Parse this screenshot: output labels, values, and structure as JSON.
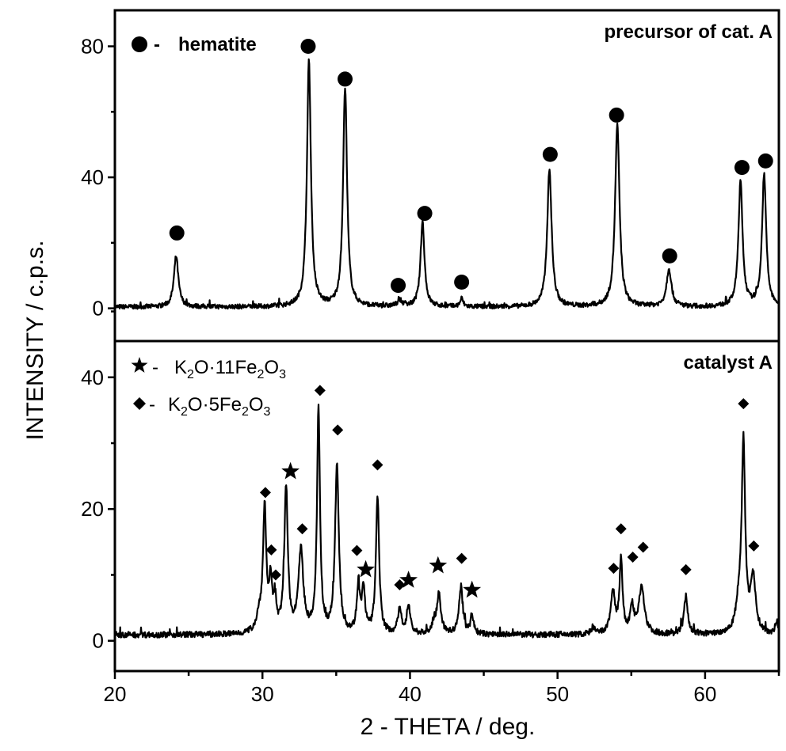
{
  "chart_data": [
    {
      "type": "line",
      "panel": "top",
      "label": "precursor of cat. A",
      "xlabel": "2 - THETA  / deg.",
      "ylabel": "INTENSITY  / c.p.s.",
      "xlim": [
        20,
        65
      ],
      "ylim": [
        -10,
        91
      ],
      "yticks": [
        0,
        40,
        80
      ],
      "baseline": 0.4,
      "peaks": [
        {
          "x": 24.15,
          "y": 15.5,
          "w": 0.18
        },
        {
          "x": 33.15,
          "y": 75,
          "w": 0.16
        },
        {
          "x": 35.6,
          "y": 67,
          "w": 0.16
        },
        {
          "x": 39.3,
          "y": 1.8,
          "w": 0.2
        },
        {
          "x": 40.85,
          "y": 26,
          "w": 0.16
        },
        {
          "x": 43.5,
          "y": 2.5,
          "w": 0.12
        },
        {
          "x": 49.45,
          "y": 42,
          "w": 0.18
        },
        {
          "x": 54.05,
          "y": 55.5,
          "w": 0.18
        },
        {
          "x": 57.55,
          "y": 11.5,
          "w": 0.2
        },
        {
          "x": 62.4,
          "y": 38,
          "w": 0.17
        },
        {
          "x": 64.0,
          "y": 40,
          "w": 0.17
        }
      ],
      "legend": [
        {
          "marker": "circle",
          "text": "hematite"
        }
      ],
      "markers": [
        {
          "type": "circle",
          "x": 24.2,
          "y": 23
        },
        {
          "type": "circle",
          "x": 33.1,
          "y": 80
        },
        {
          "type": "circle",
          "x": 35.6,
          "y": 70
        },
        {
          "type": "circle",
          "x": 39.2,
          "y": 7
        },
        {
          "type": "circle",
          "x": 41.0,
          "y": 29
        },
        {
          "type": "circle",
          "x": 43.5,
          "y": 8
        },
        {
          "type": "circle",
          "x": 49.5,
          "y": 47
        },
        {
          "type": "circle",
          "x": 54.0,
          "y": 59
        },
        {
          "type": "circle",
          "x": 57.6,
          "y": 16
        },
        {
          "type": "circle",
          "x": 62.5,
          "y": 43
        },
        {
          "type": "circle",
          "x": 64.1,
          "y": 45
        }
      ]
    },
    {
      "type": "line",
      "panel": "bottom",
      "label": "catalyst A",
      "xlim": [
        20,
        65
      ],
      "ylim": [
        -4.6,
        45.5
      ],
      "yticks": [
        0,
        20,
        40
      ],
      "xticks": [
        20,
        30,
        40,
        50,
        60
      ],
      "baseline": 0.9,
      "peaks": [
        {
          "x": 29.8,
          "y": 2.5,
          "w": 0.25
        },
        {
          "x": 30.15,
          "y": 18.5,
          "w": 0.13
        },
        {
          "x": 30.55,
          "y": 7,
          "w": 0.12
        },
        {
          "x": 30.85,
          "y": 4.5,
          "w": 0.12
        },
        {
          "x": 31.6,
          "y": 22,
          "w": 0.14
        },
        {
          "x": 32.6,
          "y": 12.5,
          "w": 0.2
        },
        {
          "x": 33.8,
          "y": 34,
          "w": 0.12
        },
        {
          "x": 35.05,
          "y": 25.8,
          "w": 0.15
        },
        {
          "x": 36.5,
          "y": 6.8,
          "w": 0.13
        },
        {
          "x": 36.85,
          "y": 6.5,
          "w": 0.13
        },
        {
          "x": 37.8,
          "y": 21,
          "w": 0.13
        },
        {
          "x": 39.3,
          "y": 3.5,
          "w": 0.15
        },
        {
          "x": 39.9,
          "y": 4.2,
          "w": 0.15
        },
        {
          "x": 41.6,
          "y": 1.2,
          "w": 0.15
        },
        {
          "x": 41.95,
          "y": 6,
          "w": 0.17
        },
        {
          "x": 43.45,
          "y": 7.2,
          "w": 0.15
        },
        {
          "x": 44.2,
          "y": 3,
          "w": 0.12
        },
        {
          "x": 52.4,
          "y": 1,
          "w": 0.15
        },
        {
          "x": 53.75,
          "y": 6.3,
          "w": 0.18
        },
        {
          "x": 54.3,
          "y": 11,
          "w": 0.12
        },
        {
          "x": 55.05,
          "y": 4,
          "w": 0.15
        },
        {
          "x": 55.7,
          "y": 7.2,
          "w": 0.22
        },
        {
          "x": 58.7,
          "y": 5.8,
          "w": 0.15
        },
        {
          "x": 62.3,
          "y": 4,
          "w": 0.25
        },
        {
          "x": 62.6,
          "y": 28,
          "w": 0.14
        },
        {
          "x": 63.25,
          "y": 8.5,
          "w": 0.2
        },
        {
          "x": 64.85,
          "y": 1.8,
          "w": 0.12
        }
      ],
      "legend": [
        {
          "marker": "star",
          "text": "K2O·11Fe2O3"
        },
        {
          "marker": "diamond",
          "text": "K2O·5Fe2O3"
        }
      ],
      "markers": [
        {
          "type": "diamond",
          "x": 30.2,
          "y": 22.5
        },
        {
          "type": "diamond",
          "x": 30.6,
          "y": 13.8
        },
        {
          "type": "diamond",
          "x": 30.9,
          "y": 10
        },
        {
          "type": "star",
          "x": 31.9,
          "y": 25.7
        },
        {
          "type": "diamond",
          "x": 32.7,
          "y": 17
        },
        {
          "type": "diamond",
          "x": 33.9,
          "y": 38
        },
        {
          "type": "diamond",
          "x": 35.1,
          "y": 32
        },
        {
          "type": "diamond",
          "x": 36.4,
          "y": 13.7
        },
        {
          "type": "star",
          "x": 37.0,
          "y": 10.8
        },
        {
          "type": "diamond",
          "x": 37.8,
          "y": 26.7
        },
        {
          "type": "diamond",
          "x": 39.3,
          "y": 8.5
        },
        {
          "type": "star",
          "x": 39.9,
          "y": 9.2
        },
        {
          "type": "star",
          "x": 41.9,
          "y": 11.4
        },
        {
          "type": "diamond",
          "x": 43.5,
          "y": 12.5
        },
        {
          "type": "star",
          "x": 44.2,
          "y": 7.7
        },
        {
          "type": "diamond",
          "x": 53.8,
          "y": 11
        },
        {
          "type": "diamond",
          "x": 54.3,
          "y": 17
        },
        {
          "type": "diamond",
          "x": 55.1,
          "y": 12.7
        },
        {
          "type": "diamond",
          "x": 55.8,
          "y": 14.2
        },
        {
          "type": "diamond",
          "x": 58.7,
          "y": 10.8
        },
        {
          "type": "diamond",
          "x": 62.6,
          "y": 36
        },
        {
          "type": "diamond",
          "x": 63.3,
          "y": 14.4
        }
      ]
    }
  ],
  "labels": {
    "xlabel": "2 - THETA  / deg.",
    "ylabel": "INTENSITY  / c.p.s.",
    "top_title": "precursor of cat. A",
    "bottom_title": "catalyst A",
    "legend_hematite": "hematite",
    "legend_k11": "K2O·11Fe2O3",
    "legend_k5": "K2O·5Fe2O3",
    "dash": "-"
  }
}
